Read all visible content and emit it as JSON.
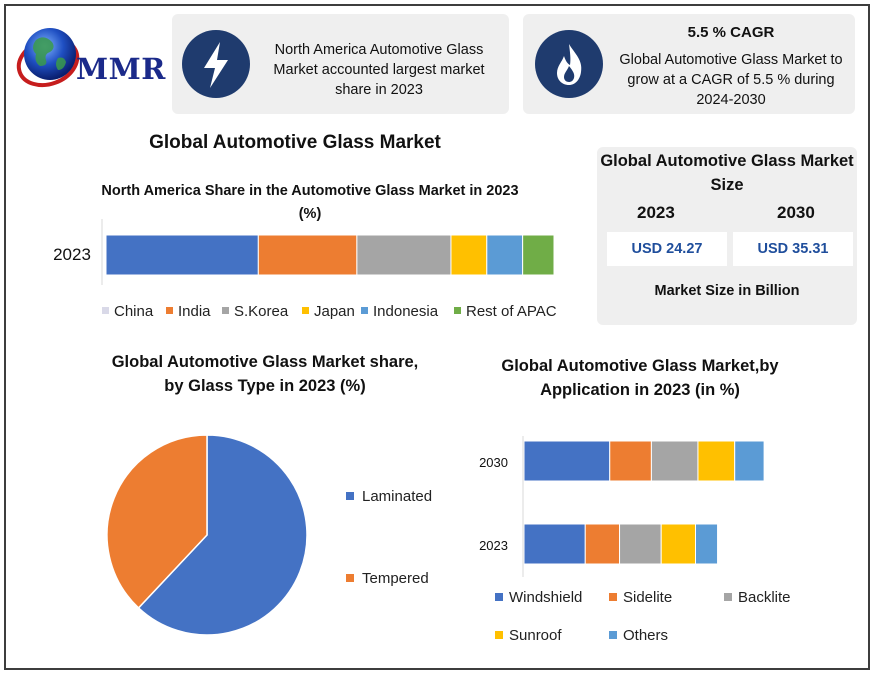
{
  "logo": {
    "text": "MMR",
    "icon": "globe-icon"
  },
  "card_largest_share": {
    "icon": "lightning-icon",
    "text": "North America Automotive Glass Market accounted largest market share in 2023"
  },
  "card_cagr": {
    "icon": "flame-icon",
    "headline": "5.5 % CAGR",
    "text": "Global Automotive Glass Market to grow at a CAGR of 5.5 % during 2024-2030"
  },
  "main_title": "Global Automotive Glass Market",
  "market_size": {
    "title": "Global Automotive Glass Market Size",
    "year_a": "2023",
    "year_b": "2030",
    "value_a": "USD 24.27",
    "value_b": "USD 35.31",
    "note": "Market Size in Billion"
  },
  "chart_data": [
    {
      "type": "bar",
      "orientation": "horizontal-stacked",
      "title": "North America Share in the Automotive Glass Market in 2023 (%)",
      "categories": [
        "2023"
      ],
      "series": [
        {
          "name": "China",
          "values": [
            34
          ],
          "color": "#4472c4"
        },
        {
          "name": "India",
          "values": [
            22
          ],
          "color": "#ed7d31"
        },
        {
          "name": "S.Korea",
          "values": [
            21
          ],
          "color": "#a5a5a5"
        },
        {
          "name": "Japan",
          "values": [
            8
          ],
          "color": "#ffc000"
        },
        {
          "name": "Indonesia",
          "values": [
            8
          ],
          "color": "#5b9bd5"
        },
        {
          "name": "Rest of APAC",
          "values": [
            7
          ],
          "color": "#70ad47"
        }
      ],
      "legend": "bottom",
      "grid": false
    },
    {
      "type": "pie",
      "title": "Global Automotive Glass Market share, by Glass Type in 2023 (%)",
      "slices": [
        {
          "name": "Laminated",
          "value": 62,
          "color": "#4472c4"
        },
        {
          "name": "Tempered",
          "value": 38,
          "color": "#ed7d31"
        }
      ],
      "legend": "right"
    },
    {
      "type": "bar",
      "orientation": "horizontal-stacked",
      "title": "Global Automotive Glass Market,by Application in 2023 (in %)",
      "categories": [
        "2030",
        "2023"
      ],
      "series": [
        {
          "name": "Windshield",
          "values": [
            35,
            25
          ],
          "color": "#4472c4"
        },
        {
          "name": "Sidelite",
          "values": [
            17,
            14
          ],
          "color": "#ed7d31"
        },
        {
          "name": "Backlite",
          "values": [
            19,
            17
          ],
          "color": "#a5a5a5"
        },
        {
          "name": "Sunroof",
          "values": [
            15,
            14
          ],
          "color": "#ffc000"
        },
        {
          "name": "Others",
          "values": [
            12,
            9
          ],
          "color": "#5b9bd5"
        }
      ],
      "legend": "bottom",
      "grid": false
    }
  ]
}
